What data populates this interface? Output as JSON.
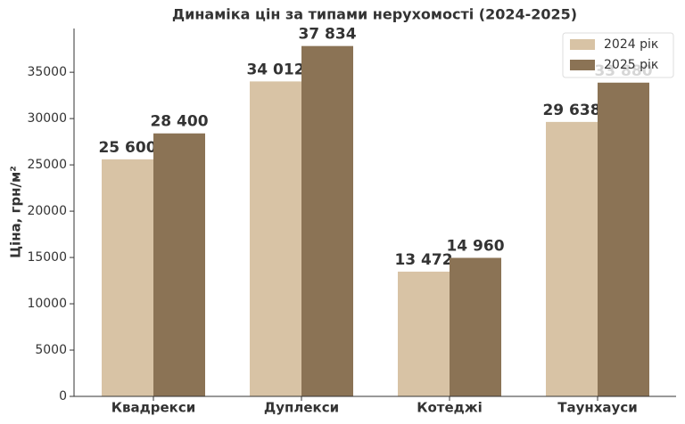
{
  "chart_data": {
    "type": "bar",
    "title": "Динаміка цін за типами нерухомості (2024-2025)",
    "y_label": "Ціна, грн/м²",
    "categories": [
      "Квадрекси",
      "Дуплекси",
      "Котеджі",
      "Таунхауси"
    ],
    "series": [
      {
        "name": "2024 рік",
        "color": "#d8c3a5",
        "values": [
          25600,
          34012,
          13472,
          29638
        ],
        "value_labels": [
          "25 600",
          "34 012",
          "13 472",
          "29 638"
        ]
      },
      {
        "name": "2025 рік",
        "color": "#8b7355",
        "values": [
          28400,
          37834,
          14960,
          33880
        ],
        "value_labels": [
          "28 400",
          "37 834",
          "14 960",
          "33 880"
        ]
      }
    ],
    "ylim": [
      0,
      39726
    ],
    "yticks": [
      0,
      5000,
      10000,
      15000,
      20000,
      25000,
      30000,
      35000
    ],
    "legend": "upper right"
  }
}
